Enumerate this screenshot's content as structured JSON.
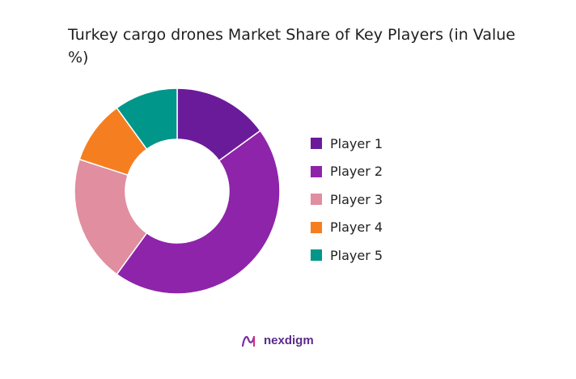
{
  "chart_data": {
    "type": "pie",
    "title": "Turkey cargo drones Market Share of Key Players (in Value %)",
    "categories": [
      "Player 1",
      "Player 2",
      "Player 3",
      "Player 4",
      "Player 5"
    ],
    "values": [
      15,
      45,
      20,
      10,
      10
    ],
    "colors": [
      "#6a1b9a",
      "#8e24aa",
      "#e08ea0",
      "#f57f20",
      "#00968a"
    ],
    "donut": true,
    "legend_position": "right"
  },
  "brand": {
    "name": "nexdigm",
    "logo_icon": "nexdigm-logo-icon"
  }
}
